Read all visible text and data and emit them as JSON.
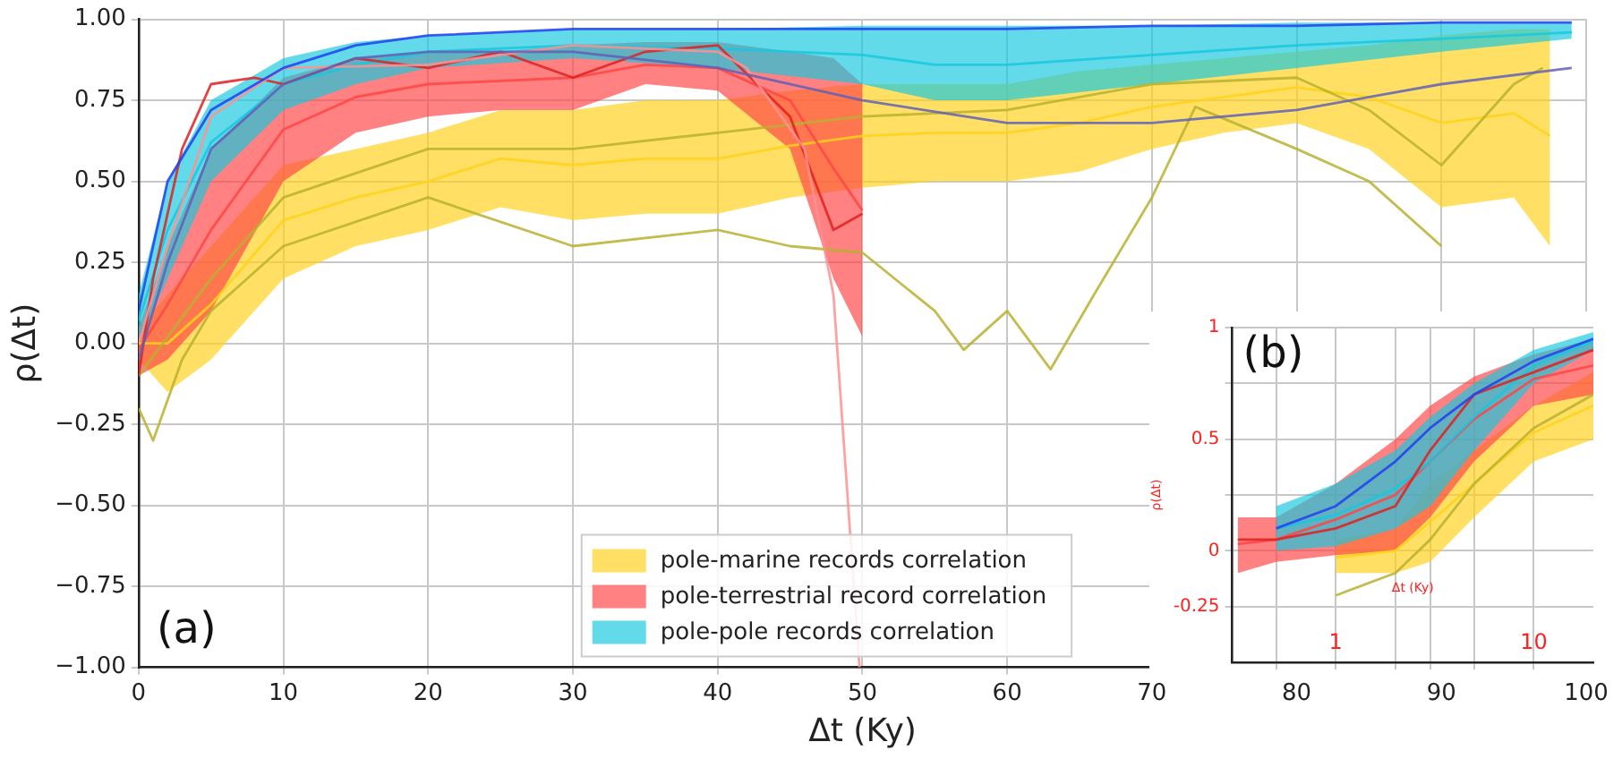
{
  "chart_data": [
    {
      "type": "line",
      "xlabel": "Δt (Ky)",
      "ylabel": "ρ(Δt)",
      "xlim": [
        0,
        100
      ],
      "ylim": [
        -1,
        1
      ],
      "xticks": [
        0,
        10,
        20,
        30,
        40,
        50,
        60,
        70,
        80,
        90,
        100
      ],
      "yticks": [
        {
          "value": -1,
          "label": "−1.00"
        },
        {
          "value": -0.75,
          "label": "−0.75"
        },
        {
          "value": -0.5,
          "label": "−0.50"
        },
        {
          "value": -0.25,
          "label": "−0.25"
        },
        {
          "value": 0,
          "label": "0.00"
        },
        {
          "value": 0.25,
          "label": "0.25"
        },
        {
          "value": 0.5,
          "label": "0.50"
        },
        {
          "value": 0.75,
          "label": "0.75"
        },
        {
          "value": 1,
          "label": "1.00"
        }
      ],
      "grid": true,
      "legend": "bottom",
      "annotations": [
        "(a)"
      ],
      "series": [
        {
          "type": "line",
          "name": "pole-marine records correlation",
          "color": "#ffd21a",
          "x": [
            0,
            2,
            5,
            10,
            15,
            20,
            25,
            30,
            35,
            40,
            45,
            50,
            55,
            60,
            65,
            70,
            75,
            80,
            85,
            90,
            95,
            97.5
          ],
          "values": [
            0,
            0,
            0.12,
            0.38,
            0.45,
            0.5,
            0.57,
            0.55,
            0.57,
            0.57,
            0.61,
            0.64,
            0.65,
            0.65,
            0.68,
            0.73,
            0.76,
            0.79,
            0.76,
            0.68,
            0.71,
            0.64
          ],
          "lower": [
            -0.05,
            -0.15,
            -0.05,
            0.2,
            0.3,
            0.35,
            0.42,
            0.38,
            0.4,
            0.4,
            0.45,
            0.48,
            0.5,
            0.5,
            0.53,
            0.6,
            0.65,
            0.68,
            0.6,
            0.42,
            0.45,
            0.3
          ],
          "upper": [
            0.05,
            0.15,
            0.3,
            0.55,
            0.6,
            0.65,
            0.72,
            0.72,
            0.75,
            0.75,
            0.78,
            0.8,
            0.8,
            0.8,
            0.84,
            0.86,
            0.88,
            0.9,
            0.92,
            0.95,
            0.97,
            0.97
          ]
        },
        {
          "type": "line",
          "name": "pole-terrestrial record correlation",
          "color": "#ff4545",
          "x": [
            0,
            2,
            5,
            10,
            15,
            20,
            25,
            30,
            35,
            40,
            45,
            48,
            50
          ],
          "values": [
            -0.02,
            0.12,
            0.35,
            0.66,
            0.76,
            0.8,
            0.81,
            0.82,
            0.86,
            0.85,
            0.75,
            0.54,
            0.41
          ],
          "lower": [
            -0.1,
            -0.05,
            0.1,
            0.5,
            0.65,
            0.7,
            0.72,
            0.72,
            0.8,
            0.78,
            0.6,
            0.2,
            0.02
          ],
          "upper": [
            0.05,
            0.3,
            0.6,
            0.82,
            0.88,
            0.9,
            0.9,
            0.92,
            0.93,
            0.93,
            0.9,
            0.88,
            0.8
          ]
        },
        {
          "type": "line",
          "name": "pole-pole records correlation",
          "color": "#18c8df",
          "x": [
            0,
            2,
            5,
            10,
            15,
            20,
            30,
            40,
            50,
            55,
            60,
            70,
            80,
            90,
            99
          ],
          "values": [
            0.07,
            0.35,
            0.62,
            0.8,
            0.86,
            0.9,
            0.92,
            0.91,
            0.89,
            0.86,
            0.86,
            0.89,
            0.92,
            0.94,
            0.96
          ],
          "lower": [
            0,
            0.2,
            0.5,
            0.72,
            0.8,
            0.85,
            0.88,
            0.85,
            0.8,
            0.75,
            0.75,
            0.8,
            0.85,
            0.9,
            0.94
          ],
          "upper": [
            0.15,
            0.5,
            0.75,
            0.88,
            0.93,
            0.95,
            0.97,
            0.97,
            0.98,
            0.98,
            0.98,
            0.98,
            0.99,
            0.99,
            0.99
          ]
        },
        {
          "type": "line",
          "color": "#b8b030",
          "x": [
            0,
            1,
            3,
            5,
            10,
            20,
            30,
            40,
            45,
            50,
            55,
            57,
            60,
            63,
            66,
            70,
            73,
            80,
            85,
            90
          ],
          "values": [
            -0.2,
            -0.3,
            -0.05,
            0.1,
            0.3,
            0.45,
            0.3,
            0.35,
            0.3,
            0.28,
            0.1,
            -0.02,
            0.1,
            -0.08,
            0.15,
            0.45,
            0.73,
            0.6,
            0.5,
            0.3
          ]
        },
        {
          "type": "line",
          "color": "#b8b030",
          "x": [
            0,
            5,
            10,
            20,
            30,
            40,
            50,
            60,
            70,
            80,
            85,
            90,
            95,
            97
          ],
          "values": [
            -0.1,
            0.2,
            0.45,
            0.6,
            0.6,
            0.65,
            0.7,
            0.72,
            0.8,
            0.82,
            0.72,
            0.55,
            0.8,
            0.85
          ]
        },
        {
          "type": "line",
          "color": "#e02020",
          "x": [
            0,
            1,
            3,
            5,
            8,
            10,
            15,
            20,
            25,
            30,
            35,
            40,
            45,
            48,
            50
          ],
          "values": [
            -0.1,
            0.2,
            0.6,
            0.8,
            0.82,
            0.8,
            0.88,
            0.85,
            0.9,
            0.82,
            0.9,
            0.92,
            0.7,
            0.35,
            0.4
          ]
        },
        {
          "type": "line",
          "color": "#ff9090",
          "x": [
            0,
            2,
            5,
            10,
            20,
            30,
            40,
            42,
            46,
            48,
            49.8
          ],
          "values": [
            0,
            0.3,
            0.7,
            0.85,
            0.86,
            0.92,
            0.9,
            0.85,
            0.6,
            0.15,
            -1
          ]
        },
        {
          "type": "line",
          "color": "#2040f0",
          "x": [
            0,
            2,
            5,
            10,
            15,
            20,
            30,
            40,
            50,
            60,
            70,
            80,
            90,
            99
          ],
          "values": [
            0.1,
            0.5,
            0.72,
            0.85,
            0.92,
            0.95,
            0.97,
            0.97,
            0.97,
            0.97,
            0.98,
            0.98,
            0.99,
            0.99
          ]
        },
        {
          "type": "line",
          "color": "#6060b8",
          "x": [
            0,
            2,
            5,
            10,
            15,
            20,
            30,
            40,
            50,
            60,
            70,
            80,
            90,
            99
          ],
          "values": [
            -0.05,
            0.25,
            0.6,
            0.8,
            0.88,
            0.9,
            0.9,
            0.85,
            0.75,
            0.68,
            0.68,
            0.72,
            0.8,
            0.85
          ]
        }
      ]
    },
    {
      "type": "line",
      "xlabel": "Δt (Ky)",
      "ylabel": "ρ(Δt)",
      "log": "x",
      "xlim": [
        0.32,
        20
      ],
      "ylim": [
        -0.5,
        1
      ],
      "xticks": [
        {
          "value": 0.5,
          "label": null
        },
        {
          "value": 1,
          "label": "1"
        },
        {
          "value": 2,
          "label": null
        },
        {
          "value": 3,
          "label": null
        },
        {
          "value": 5,
          "label": null
        },
        {
          "value": 10,
          "label": "10"
        }
      ],
      "yticks": [
        {
          "value": -0.25,
          "label": "-0.25"
        },
        0,
        {
          "value": 0.25,
          "label": null
        },
        {
          "value": 0.5,
          "label": "0.5"
        },
        {
          "value": 0.75,
          "label": null
        },
        1
      ],
      "grid": true,
      "annotations": [
        "(b)"
      ],
      "series": [
        {
          "type": "line",
          "color": "#ffd21a",
          "x": [
            1,
            2,
            3,
            5,
            10,
            20
          ],
          "values": [
            -0.03,
            0,
            0.13,
            0.3,
            0.53,
            0.65
          ],
          "lower": [
            -0.1,
            -0.1,
            -0.05,
            0.15,
            0.4,
            0.5
          ],
          "upper": [
            0.05,
            0.1,
            0.3,
            0.45,
            0.65,
            0.8
          ]
        },
        {
          "type": "line",
          "color": "#ff4545",
          "x": [
            0.32,
            0.5,
            1,
            2,
            3,
            5,
            10,
            20
          ],
          "values": [
            0.03,
            0.05,
            0.14,
            0.25,
            0.4,
            0.59,
            0.77,
            0.83
          ],
          "lower": [
            -0.1,
            -0.05,
            -0.02,
            0,
            0.15,
            0.4,
            0.65,
            0.7
          ],
          "upper": [
            0.15,
            0.15,
            0.3,
            0.5,
            0.65,
            0.78,
            0.88,
            0.95
          ]
        },
        {
          "type": "line",
          "color": "#18c8df",
          "x": [
            0.5,
            1,
            2,
            3,
            5,
            10,
            20
          ],
          "values": [
            0.1,
            0.16,
            0.28,
            0.4,
            0.6,
            0.83,
            0.94
          ],
          "lower": [
            0,
            0.02,
            0.1,
            0.2,
            0.45,
            0.75,
            0.9
          ],
          "upper": [
            0.2,
            0.3,
            0.45,
            0.6,
            0.75,
            0.9,
            0.98
          ]
        },
        {
          "type": "line",
          "color": "#b8b030",
          "x": [
            1,
            2,
            3,
            5,
            10,
            20
          ],
          "values": [
            -0.2,
            -0.1,
            0.05,
            0.3,
            0.55,
            0.7
          ]
        },
        {
          "type": "line",
          "color": "#e02020",
          "x": [
            0.32,
            0.5,
            1,
            2,
            3,
            5,
            10,
            20
          ],
          "values": [
            0.05,
            0.05,
            0.1,
            0.2,
            0.45,
            0.7,
            0.8,
            0.9
          ]
        },
        {
          "type": "line",
          "color": "#2040f0",
          "x": [
            0.5,
            1,
            2,
            3,
            5,
            10,
            20
          ],
          "values": [
            0.1,
            0.2,
            0.4,
            0.55,
            0.7,
            0.85,
            0.95
          ]
        }
      ]
    }
  ]
}
